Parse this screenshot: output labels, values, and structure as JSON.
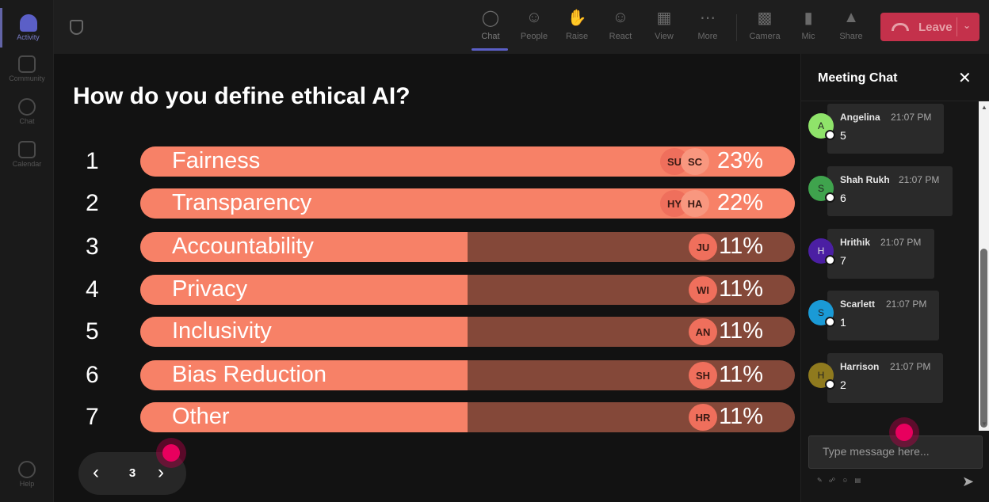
{
  "rail": {
    "items": [
      {
        "label": "Activity",
        "name": "rail-item-activity"
      },
      {
        "label": "Community",
        "name": "rail-item-community"
      },
      {
        "label": "Chat",
        "name": "rail-item-chat"
      },
      {
        "label": "Calendar",
        "name": "rail-item-calendar"
      },
      {
        "label": "Help",
        "name": "rail-item-help"
      }
    ]
  },
  "toolbar": {
    "chat": "Chat",
    "people": "People",
    "raise": "Raise",
    "react": "React",
    "view": "View",
    "more": "More",
    "camera": "Camera",
    "mic": "Mic",
    "share": "Share",
    "leave": "Leave"
  },
  "poll": {
    "question": "How do you define ethical AI?",
    "options": [
      {
        "rank": "1",
        "label": "Fairness",
        "percent_text": "23%",
        "percent": 23,
        "avatars": [
          "SU",
          "SC"
        ]
      },
      {
        "rank": "2",
        "label": "Transparency",
        "percent_text": "22%",
        "percent": 22,
        "avatars": [
          "HY",
          "HA"
        ]
      },
      {
        "rank": "3",
        "label": "Accountability",
        "percent_text": "11%",
        "percent": 11,
        "avatars": [
          "JU"
        ]
      },
      {
        "rank": "4",
        "label": "Privacy",
        "percent_text": "11%",
        "percent": 11,
        "avatars": [
          "WI"
        ]
      },
      {
        "rank": "5",
        "label": "Inclusivity",
        "percent_text": "11%",
        "percent": 11,
        "avatars": [
          "AN"
        ]
      },
      {
        "rank": "6",
        "label": "Bias Reduction",
        "percent_text": "11%",
        "percent": 11,
        "avatars": [
          "SH"
        ]
      },
      {
        "rank": "7",
        "label": "Other",
        "percent_text": "11%",
        "percent": 11,
        "avatars": [
          "HR"
        ]
      }
    ],
    "page": "3",
    "bar_color": "#f78167",
    "track_color": "#844839"
  },
  "chat": {
    "title": "Meeting Chat",
    "messages": [
      {
        "initial": "A",
        "name": "Angelina",
        "time": "21:07 PM",
        "text": "5",
        "color": "#8fe36a"
      },
      {
        "initial": "S",
        "name": "Shah Rukh",
        "time": "21:07 PM",
        "text": "6",
        "color": "#3fa34d"
      },
      {
        "initial": "H",
        "name": "Hrithik",
        "time": "21:07 PM",
        "text": "7",
        "color": "#4b1fa3"
      },
      {
        "initial": "S",
        "name": "Scarlett",
        "time": "21:07 PM",
        "text": "1",
        "color": "#1a9ad6"
      },
      {
        "initial": "H",
        "name": "Harrison",
        "time": "21:07 PM",
        "text": "2",
        "color": "#8f7a1e"
      }
    ],
    "input_placeholder": "Type message here..."
  },
  "colors": {
    "accent": "#5b5fc7",
    "leave": "#c4314b"
  }
}
